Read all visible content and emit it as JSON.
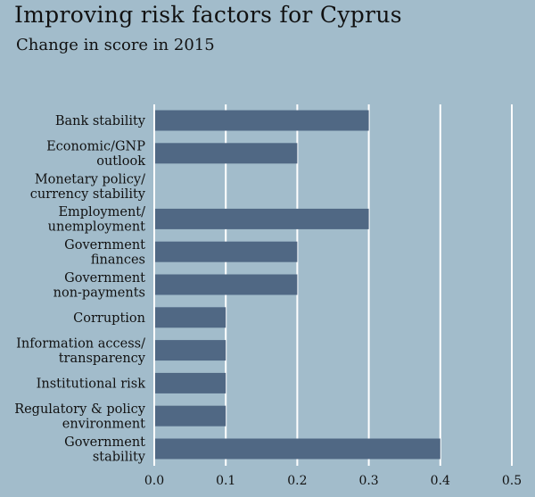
{
  "chart_data": {
    "type": "bar",
    "orientation": "horizontal",
    "title": "Improving risk factors for Cyprus",
    "subtitle": "Change in score in 2015",
    "categories": [
      [
        "Bank stability"
      ],
      [
        "Economic/GNP",
        "outlook"
      ],
      [
        "Monetary policy/",
        "currency stability"
      ],
      [
        "Employment/",
        "unemployment"
      ],
      [
        "Government",
        "finances"
      ],
      [
        "Government",
        "non-payments"
      ],
      [
        "Corruption"
      ],
      [
        "Information access/",
        "transparency"
      ],
      [
        "Institutional risk"
      ],
      [
        "Regulatory & policy",
        "environment"
      ],
      [
        "Government ",
        "stability"
      ]
    ],
    "values": [
      0.3,
      0.2,
      0,
      0.3,
      0.2,
      0.2,
      0.1,
      0.1,
      0.1,
      0.1,
      0.4
    ],
    "xlim": [
      0,
      0.5
    ],
    "xticks": [
      "0.0",
      "0.1",
      "0.2",
      "0.3",
      "0.4",
      "0.5"
    ],
    "grid": true,
    "colors": {
      "background": "#a2bccb",
      "bar": "#506884",
      "grid": "#ffffff"
    }
  }
}
